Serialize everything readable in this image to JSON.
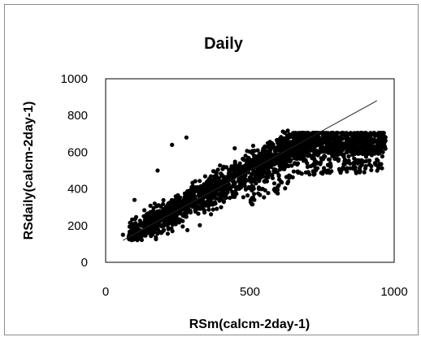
{
  "chart_data": {
    "type": "scatter",
    "title": "Daily",
    "xlabel": "RSm(calcm-2day-1)",
    "ylabel": "RSdaily(calcm-2day-1)",
    "xlim": [
      0,
      1000
    ],
    "ylim": [
      0,
      1000
    ],
    "xticks": [
      "0",
      "500",
      "1000"
    ],
    "yticks": [
      "0",
      "200",
      "400",
      "600",
      "800",
      "1000"
    ],
    "grid": false,
    "legend": "none",
    "marker_color": "#000000",
    "series": [
      {
        "points_description": "dense cloud of several thousand daily observations forming a band from about (60,140) rising to about (650,640) and leveling near 600-700 up to x≈970",
        "sample_points": [
          [
            60,
            150
          ],
          [
            80,
            140
          ],
          [
            100,
            160
          ],
          [
            120,
            170
          ],
          [
            150,
            200
          ],
          [
            180,
            230
          ],
          [
            200,
            250
          ],
          [
            230,
            270
          ],
          [
            260,
            300
          ],
          [
            300,
            330
          ],
          [
            330,
            360
          ],
          [
            360,
            400
          ],
          [
            400,
            430
          ],
          [
            430,
            460
          ],
          [
            460,
            500
          ],
          [
            500,
            530
          ],
          [
            530,
            560
          ],
          [
            560,
            590
          ],
          [
            600,
            610
          ],
          [
            630,
            630
          ],
          [
            660,
            650
          ],
          [
            700,
            660
          ],
          [
            750,
            660
          ],
          [
            800,
            650
          ],
          [
            850,
            640
          ],
          [
            900,
            640
          ],
          [
            950,
            660
          ],
          [
            180,
            500
          ],
          [
            230,
            640
          ],
          [
            280,
            680
          ],
          [
            100,
            340
          ],
          [
            250,
            220
          ],
          [
            400,
            300
          ],
          [
            600,
            420
          ],
          [
            700,
            520
          ],
          [
            940,
            560
          ]
        ]
      },
      {
        "type": "line",
        "x": [
          60,
          940
        ],
        "y": [
          120,
          880
        ]
      }
    ]
  }
}
